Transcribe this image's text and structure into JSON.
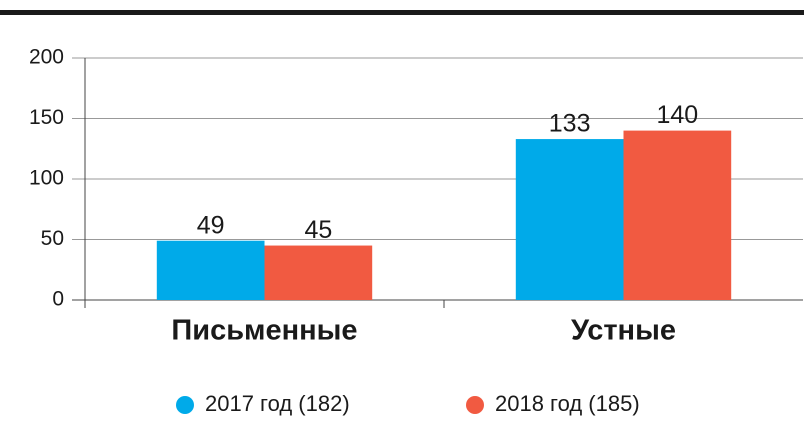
{
  "chart_data": {
    "type": "bar",
    "categories": [
      "Письменные",
      "Устные"
    ],
    "series": [
      {
        "name": "2017 год (182)",
        "color": "#00aae9",
        "values": [
          49,
          133
        ]
      },
      {
        "name": "2018 год (185)",
        "color": "#f15a41",
        "values": [
          45,
          140
        ]
      }
    ],
    "ylim": [
      0,
      200
    ],
    "yticks": [
      0,
      50,
      100,
      150,
      200
    ],
    "grid": true
  }
}
